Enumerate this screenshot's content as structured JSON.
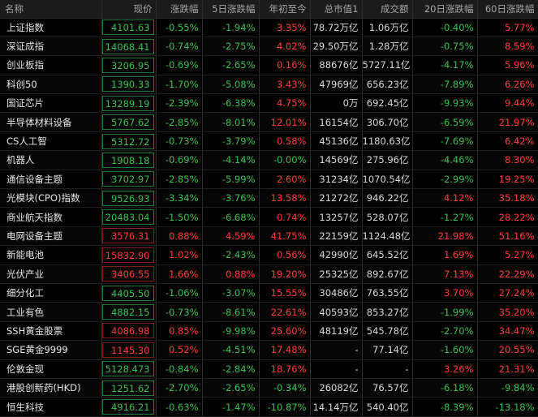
{
  "colors": {
    "up": "#ff3b3b",
    "down": "#35c24d",
    "neutral": "#d8d8d8",
    "background": "#000000"
  },
  "headers": [
    "名称",
    "现价",
    "涨跌幅",
    "5日涨跌幅",
    "年初至今",
    "总市值1",
    "成交额",
    "20日涨跌幅",
    "60日涨跌幅"
  ],
  "rows": [
    {
      "name": "上证指数",
      "price": "4101.63",
      "chg": "-0.55%",
      "chg5": "-1.94%",
      "ytd": "3.35%",
      "mcap": "78.72万亿",
      "vol": "1.06万亿",
      "chg20": "-0.40%",
      "chg60": "5.77%"
    },
    {
      "name": "深证成指",
      "price": "14068.41",
      "chg": "-0.74%",
      "chg5": "-2.75%",
      "ytd": "4.02%",
      "mcap": "29.50万亿",
      "vol": "1.28万亿",
      "chg20": "-0.75%",
      "chg60": "8.59%"
    },
    {
      "name": "创业板指",
      "price": "3206.95",
      "chg": "-0.69%",
      "chg5": "-2.65%",
      "ytd": "0.16%",
      "mcap": "88676亿",
      "vol": "5727.11亿",
      "chg20": "-4.17%",
      "chg60": "5.96%"
    },
    {
      "name": "科创50",
      "price": "1390.33",
      "chg": "-1.70%",
      "chg5": "-5.08%",
      "ytd": "3.43%",
      "mcap": "47969亿",
      "vol": "656.23亿",
      "chg20": "-7.89%",
      "chg60": "6.26%"
    },
    {
      "name": "国证芯片",
      "price": "13289.19",
      "chg": "-2.39%",
      "chg5": "-6.38%",
      "ytd": "4.75%",
      "mcap": "0万",
      "vol": "692.45亿",
      "chg20": "-9.93%",
      "chg60": "9.44%"
    },
    {
      "name": "半导体材料设备",
      "price": "5767.62",
      "chg": "-2.85%",
      "chg5": "-8.01%",
      "ytd": "12.01%",
      "mcap": "16154亿",
      "vol": "306.70亿",
      "chg20": "-6.59%",
      "chg60": "21.97%"
    },
    {
      "name": "CS人工智",
      "price": "5312.72",
      "chg": "-0.73%",
      "chg5": "-3.79%",
      "ytd": "0.58%",
      "mcap": "45136亿",
      "vol": "1180.63亿",
      "chg20": "-7.69%",
      "chg60": "6.42%"
    },
    {
      "name": "机器人",
      "price": "1908.18",
      "chg": "-0.69%",
      "chg5": "-4.14%",
      "ytd": "-0.00%",
      "mcap": "14569亿",
      "vol": "275.96亿",
      "chg20": "-4.46%",
      "chg60": "8.30%"
    },
    {
      "name": "通信设备主题",
      "price": "3702.97",
      "chg": "-2.85%",
      "chg5": "-5.99%",
      "ytd": "2.60%",
      "mcap": "31234亿",
      "vol": "1070.54亿",
      "chg20": "-2.99%",
      "chg60": "19.25%"
    },
    {
      "name": "光模块(CPO)指数",
      "price": "9526.93",
      "chg": "-3.34%",
      "chg5": "-3.76%",
      "ytd": "13.58%",
      "mcap": "21272亿",
      "vol": "946.22亿",
      "chg20": "4.12%",
      "chg60": "35.18%"
    },
    {
      "name": "商业航天指数",
      "price": "20483.04",
      "chg": "-1.50%",
      "chg5": "-6.68%",
      "ytd": "0.74%",
      "mcap": "13257亿",
      "vol": "528.07亿",
      "chg20": "-1.27%",
      "chg60": "28.22%"
    },
    {
      "name": "电网设备主题",
      "price": "3576.31",
      "chg": "0.88%",
      "chg5": "4.59%",
      "ytd": "41.75%",
      "mcap": "22159亿",
      "vol": "1124.48亿",
      "chg20": "21.98%",
      "chg60": "51.16%"
    },
    {
      "name": "新能电池",
      "price": "15832.90",
      "chg": "1.02%",
      "chg5": "-2.43%",
      "ytd": "0.56%",
      "mcap": "42990亿",
      "vol": "645.52亿",
      "chg20": "1.69%",
      "chg60": "5.27%"
    },
    {
      "name": "光伏产业",
      "price": "3406.55",
      "chg": "1.66%",
      "chg5": "0.88%",
      "ytd": "19.20%",
      "mcap": "25325亿",
      "vol": "892.67亿",
      "chg20": "7.13%",
      "chg60": "22.29%"
    },
    {
      "name": "细分化工",
      "price": "4405.50",
      "chg": "-1.06%",
      "chg5": "-3.07%",
      "ytd": "15.55%",
      "mcap": "30486亿",
      "vol": "763.55亿",
      "chg20": "3.70%",
      "chg60": "27.24%"
    },
    {
      "name": "工业有色",
      "price": "4882.15",
      "chg": "-0.73%",
      "chg5": "-8.61%",
      "ytd": "22.61%",
      "mcap": "40593亿",
      "vol": "853.27亿",
      "chg20": "-1.99%",
      "chg60": "35.20%"
    },
    {
      "name": "SSH黄金股票",
      "price": "4086.98",
      "chg": "0.85%",
      "chg5": "-9.98%",
      "ytd": "25.60%",
      "mcap": "48119亿",
      "vol": "545.78亿",
      "chg20": "-2.70%",
      "chg60": "34.47%"
    },
    {
      "name": "SGE黄金9999",
      "price": "1145.30",
      "chg": "0.52%",
      "chg5": "-4.51%",
      "ytd": "17.48%",
      "mcap": "-",
      "vol": "77.14亿",
      "chg20": "-1.60%",
      "chg60": "20.55%"
    },
    {
      "name": "伦敦金现",
      "price": "5128.473",
      "chg": "-0.84%",
      "chg5": "-2.84%",
      "ytd": "18.76%",
      "mcap": "-",
      "vol": "-",
      "chg20": "3.26%",
      "chg60": "21.31%"
    },
    {
      "name": "港股创新药(HKD)",
      "price": "1251.62",
      "chg": "-2.70%",
      "chg5": "-2.65%",
      "ytd": "-0.34%",
      "mcap": "26082亿",
      "vol": "76.57亿",
      "chg20": "-6.18%",
      "chg60": "-9.84%"
    },
    {
      "name": "恒生科技",
      "price": "4916.21",
      "chg": "-0.63%",
      "chg5": "-1.47%",
      "ytd": "-10.87%",
      "mcap": "14.14万亿",
      "vol": "540.40亿",
      "chg20": "-8.39%",
      "chg60": "-13.18%"
    }
  ]
}
